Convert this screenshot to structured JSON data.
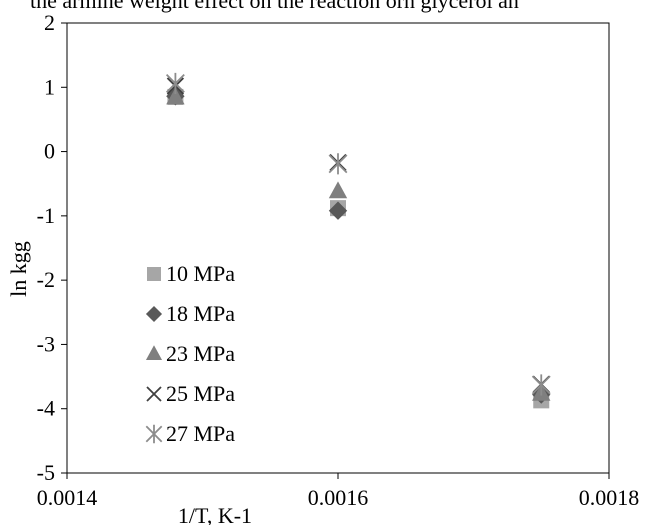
{
  "page": {
    "top_text": "the armine weight effect on the reaction orn glycerol an"
  },
  "chart_data": {
    "type": "scatter",
    "title": "",
    "xlabel": "1/T, K-1",
    "ylabel": "ln kgg",
    "xlim": [
      0.0014,
      0.0018
    ],
    "ylim": [
      -5,
      2
    ],
    "x_ticks": [
      0.0014,
      0.0016,
      0.0018
    ],
    "x_tick_labels": [
      "0.0014",
      "0.0016",
      "0.0018"
    ],
    "y_ticks": [
      -5,
      -4,
      -3,
      -2,
      -1,
      0,
      1,
      2
    ],
    "y_tick_labels": [
      "-5",
      "-4",
      "-3",
      "-2",
      "-1",
      "0",
      "1",
      "2"
    ],
    "grid": false,
    "legend_position": "center-left",
    "series": [
      {
        "name": "10 MPa",
        "marker": "square",
        "color": "#a6a6a6",
        "points": [
          [
            0.00148,
            0.85
          ],
          [
            0.0016,
            -0.88
          ],
          [
            0.00175,
            -3.87
          ]
        ]
      },
      {
        "name": "18 MPa",
        "marker": "diamond",
        "color": "#595959",
        "points": [
          [
            0.00148,
            0.86
          ],
          [
            0.0016,
            -0.92
          ],
          [
            0.00175,
            -3.78
          ]
        ]
      },
      {
        "name": "23 MPa",
        "marker": "triangle",
        "color": "#7f7f7f",
        "points": [
          [
            0.00148,
            0.84
          ],
          [
            0.0016,
            -0.62
          ],
          [
            0.00175,
            -3.77
          ]
        ]
      },
      {
        "name": "25 MPa",
        "marker": "x",
        "color": "#404040",
        "points": [
          [
            0.00148,
            1.02
          ],
          [
            0.0016,
            -0.17
          ],
          [
            0.00175,
            -3.62
          ]
        ]
      },
      {
        "name": "27 MPa",
        "marker": "asterisk",
        "color": "#8c8c8c",
        "points": [
          [
            0.00148,
            1.06
          ],
          [
            0.0016,
            -0.19
          ],
          [
            0.00175,
            -3.63
          ]
        ]
      }
    ]
  }
}
